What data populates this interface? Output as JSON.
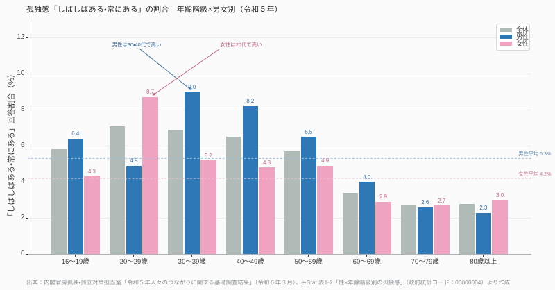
{
  "title": "孤独感「しばしばある・常にある」の割合　年齢階級×男女別（令和５年）",
  "source_note": "出典：内閣官房孤独・孤立対策担当室「令和５年人々のつながりに関する基礎調査結果」（令和６年３月）、e-Stat 表1-2「性×年齢階級別の孤独感」（政府統計コード：00000004）より作成",
  "chart_data": {
    "type": "bar",
    "title": "孤独感「しばしばある・常にある」の割合　年齢階級×男女別（令和５年）",
    "xlabel": "",
    "ylabel": "「しばしばある・常にある」回答割合（%）",
    "ylim": [
      0,
      13
    ],
    "yticks": [
      0,
      2,
      4,
      6,
      8,
      10,
      12
    ],
    "grid": true,
    "legend_position": "upper right",
    "categories": [
      "16〜19歳",
      "20〜29歳",
      "30〜39歳",
      "40〜49歳",
      "50〜59歳",
      "60〜69歳",
      "70〜79歳",
      "80歳以上"
    ],
    "series": [
      {
        "name": "全体",
        "color": "#b0bab7",
        "values": [
          5.8,
          7.1,
          6.9,
          6.5,
          5.7,
          3.4,
          2.7,
          2.8
        ],
        "value_labels_shown": false
      },
      {
        "name": "男性",
        "color": "#2e78b5",
        "label_color": "#3a72a4",
        "values": [
          6.4,
          4.9,
          9.0,
          8.2,
          6.5,
          4.0,
          2.6,
          2.3
        ],
        "value_labels_shown": true
      },
      {
        "name": "女性",
        "color": "#f0a3c0",
        "label_color": "#c9698e",
        "values": [
          4.3,
          8.7,
          5.2,
          4.8,
          4.9,
          2.9,
          2.7,
          3.0
        ],
        "value_labels_shown": true
      }
    ],
    "mean_lines": [
      {
        "label": "男性平均 5.3%",
        "value": 5.3,
        "line_color": "#a3bedd",
        "label_color": "#5d86ae"
      },
      {
        "label": "女性平均 4.2%",
        "value": 4.2,
        "line_color": "#f3c3d1",
        "label_color": "#ca7e97"
      }
    ],
    "annotations": [
      {
        "text": "男性は30・40代で高い",
        "color": "#34689c",
        "target_series": 1,
        "target_category": 2
      },
      {
        "text": "女性は20代で高い",
        "color": "#c05e7d",
        "target_series": 2,
        "target_category": 1
      }
    ]
  }
}
